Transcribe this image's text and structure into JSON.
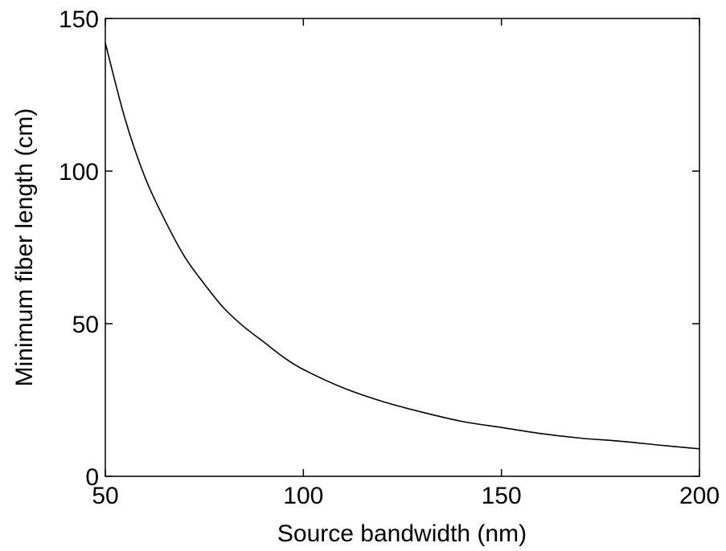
{
  "chart_data": {
    "type": "line",
    "title": "",
    "xlabel": "Source bandwidth (nm)",
    "ylabel": "Minimum fiber length (cm)",
    "xlim": [
      50,
      200
    ],
    "ylim": [
      0,
      150
    ],
    "xticks": [
      50,
      100,
      150,
      200
    ],
    "yticks": [
      0,
      50,
      100,
      150
    ],
    "xtick_labels": [
      "50",
      "100",
      "150",
      "200"
    ],
    "ytick_labels": [
      "0",
      "50",
      "100",
      "150"
    ],
    "grid": false,
    "line_color": "#000000",
    "series": [
      {
        "x": [
          50,
          55,
          60,
          65,
          70,
          75,
          80,
          85,
          90,
          95,
          100,
          110,
          120,
          130,
          140,
          150,
          160,
          170,
          180,
          190,
          200
        ],
        "y": [
          142,
          117,
          98,
          84,
          72,
          63,
          55,
          49,
          44,
          39,
          35,
          29,
          24.5,
          21,
          18,
          16,
          14,
          12.5,
          11.5,
          10.2,
          9
        ]
      }
    ]
  }
}
